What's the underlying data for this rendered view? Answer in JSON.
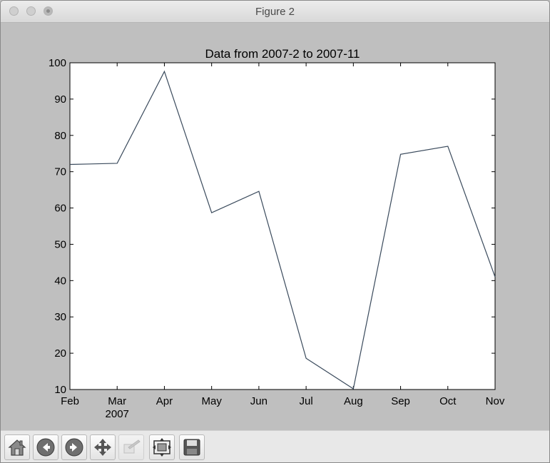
{
  "window": {
    "title": "Figure 2"
  },
  "chart_data": {
    "type": "line",
    "title": "Data from 2007-2 to 2007-11",
    "xlabel": "",
    "ylabel": "",
    "categories": [
      "Feb",
      "Mar",
      "Apr",
      "May",
      "Jun",
      "Jul",
      "Aug",
      "Sep",
      "Oct",
      "Nov"
    ],
    "year_label": "2007",
    "x": [
      "2007-02",
      "2007-03",
      "2007-04",
      "2007-05",
      "2007-06",
      "2007-07",
      "2007-08",
      "2007-09",
      "2007-10",
      "2007-11"
    ],
    "values": [
      72,
      72.3,
      97.6,
      58.7,
      64.6,
      18.6,
      10.2,
      74.8,
      77,
      41
    ],
    "ylim": [
      10,
      100
    ],
    "yticks": [
      10,
      20,
      30,
      40,
      50,
      60,
      70,
      80,
      90,
      100
    ],
    "grid": false,
    "legend": "none",
    "line_color": "#3a4a5c"
  },
  "toolbar": {
    "buttons": [
      {
        "name": "home-button",
        "icon": "home-icon",
        "enabled": true
      },
      {
        "name": "back-button",
        "icon": "arrow-left-icon",
        "enabled": true
      },
      {
        "name": "forward-button",
        "icon": "arrow-right-icon",
        "enabled": true
      },
      {
        "name": "pan-button",
        "icon": "move-icon",
        "enabled": true
      },
      {
        "name": "zoom-button",
        "icon": "zoom-rect-icon",
        "enabled": false
      },
      {
        "name": "subplots-button",
        "icon": "subplots-icon",
        "enabled": true
      },
      {
        "name": "save-button",
        "icon": "floppy-disk-icon",
        "enabled": true
      }
    ]
  }
}
